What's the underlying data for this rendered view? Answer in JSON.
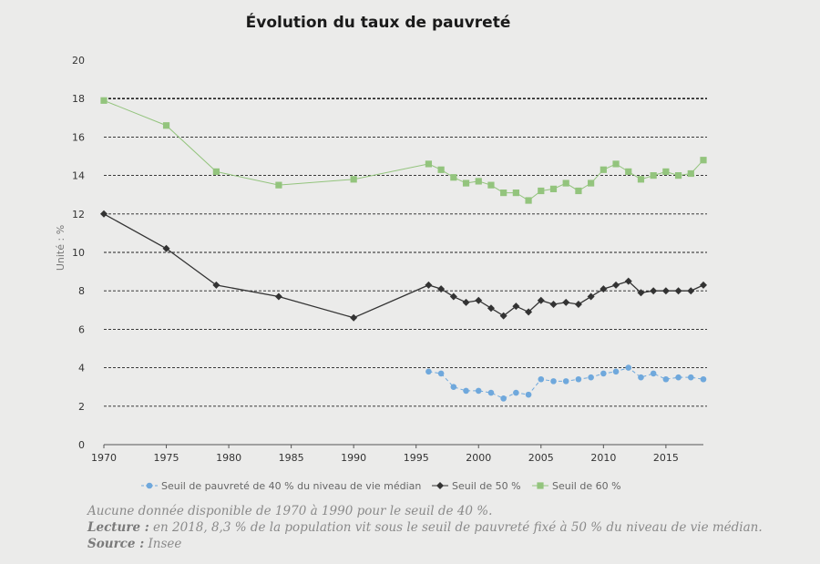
{
  "chart_data": {
    "type": "line",
    "title": "Évolution du taux de pauvreté",
    "ylabel": "Unité : %",
    "xlabel": "",
    "xlim": [
      1970,
      2018
    ],
    "ylim": [
      0,
      20
    ],
    "x_ticks": [
      1970,
      1975,
      1980,
      1985,
      1990,
      1995,
      2000,
      2005,
      2010,
      2015
    ],
    "y_ticks": [
      0,
      2,
      4,
      6,
      8,
      10,
      12,
      14,
      16,
      18,
      20
    ],
    "grid": "horizontal dashed",
    "legend_position": "bottom",
    "series": [
      {
        "name": "Seuil de pauvreté de 40 % du niveau de vie médian",
        "color": "#6fa8dc",
        "marker": "circle",
        "line_style": "dashed",
        "x": [
          1996,
          1997,
          1998,
          1999,
          2000,
          2001,
          2002,
          2003,
          2004,
          2005,
          2006,
          2007,
          2008,
          2009,
          2010,
          2011,
          2012,
          2013,
          2014,
          2015,
          2016,
          2017,
          2018
        ],
        "values": [
          3.8,
          3.7,
          3.0,
          2.8,
          2.8,
          2.7,
          2.4,
          2.7,
          2.6,
          3.4,
          3.3,
          3.3,
          3.4,
          3.5,
          3.7,
          3.8,
          4.0,
          3.5,
          3.7,
          3.4,
          3.5,
          3.5,
          3.4
        ]
      },
      {
        "name": "Seuil de 50 %",
        "color": "#333333",
        "marker": "diamond",
        "line_style": "solid",
        "x": [
          1970,
          1975,
          1979,
          1984,
          1990,
          1996,
          1997,
          1998,
          1999,
          2000,
          2001,
          2002,
          2003,
          2004,
          2005,
          2006,
          2007,
          2008,
          2009,
          2010,
          2011,
          2012,
          2013,
          2014,
          2015,
          2016,
          2017,
          2018
        ],
        "values": [
          12.0,
          10.2,
          8.3,
          7.7,
          6.6,
          8.3,
          8.1,
          7.7,
          7.4,
          7.5,
          7.1,
          6.7,
          7.2,
          6.9,
          7.5,
          7.3,
          7.4,
          7.3,
          7.7,
          8.1,
          8.3,
          8.5,
          7.9,
          8.0,
          8.0,
          8.0,
          8.0,
          8.3
        ]
      },
      {
        "name": "Seuil de 60 %",
        "color": "#93c47d",
        "marker": "square",
        "line_style": "solid",
        "x": [
          1970,
          1975,
          1979,
          1984,
          1990,
          1996,
          1997,
          1998,
          1999,
          2000,
          2001,
          2002,
          2003,
          2004,
          2005,
          2006,
          2007,
          2008,
          2009,
          2010,
          2011,
          2012,
          2013,
          2014,
          2015,
          2016,
          2017,
          2018
        ],
        "values": [
          17.9,
          16.6,
          14.2,
          13.5,
          13.8,
          14.6,
          14.3,
          13.9,
          13.6,
          13.7,
          13.5,
          13.1,
          13.1,
          12.7,
          13.2,
          13.3,
          13.6,
          13.2,
          13.6,
          14.3,
          14.6,
          14.2,
          13.8,
          14.0,
          14.2,
          14.0,
          14.1,
          14.8
        ]
      }
    ]
  },
  "notes": {
    "line1": "Aucune donnée disponible de 1970 à 1990 pour le seuil de 40 %.",
    "lecture_label": "Lecture :",
    "lecture_text": " en 2018, 8,3 % de la population vit sous le seuil de pauvreté fixé à 50 % du niveau de vie médian.",
    "source_label": "Source :",
    "source_text": " Insee"
  }
}
